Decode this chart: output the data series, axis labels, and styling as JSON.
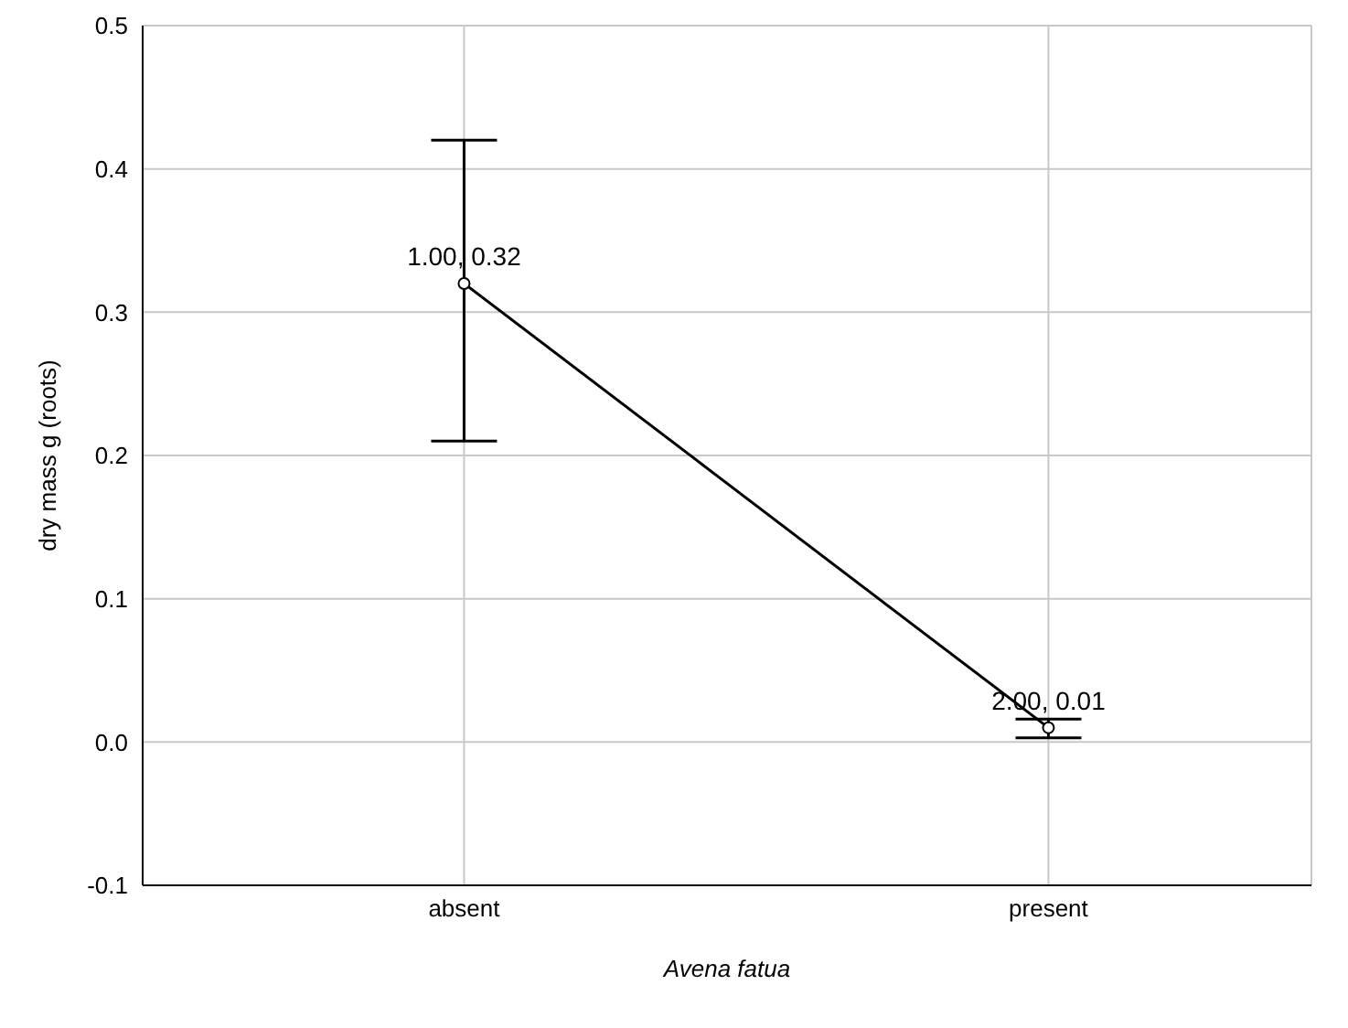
{
  "chart_data": {
    "type": "line",
    "xlabel": "Avena fatua",
    "ylabel": "dry mass g (roots)",
    "categories": [
      "absent",
      "present"
    ],
    "color": "#000000",
    "values": [
      0.32,
      0.01
    ],
    "errors": [
      [
        0.21,
        0.42
      ],
      [
        0.003,
        0.016
      ]
    ],
    "value_labels": [
      "1.00, 0.32",
      "2.00, 0.01"
    ],
    "ylim": [
      -0.1,
      0.5
    ],
    "yticks": [
      {
        "value": -0.1,
        "label": "-0.1"
      },
      {
        "value": 0,
        "label": "0.0"
      },
      {
        "value": 0.1,
        "label": "0.1"
      },
      {
        "value": 0.2,
        "label": "0.2"
      },
      {
        "value": 0.3,
        "label": "0.3"
      },
      {
        "value": 0.4,
        "label": "0.4"
      },
      {
        "value": 0.5,
        "label": "0.5"
      }
    ],
    "grid": true,
    "marker": "circle",
    "line_style": "solid"
  }
}
